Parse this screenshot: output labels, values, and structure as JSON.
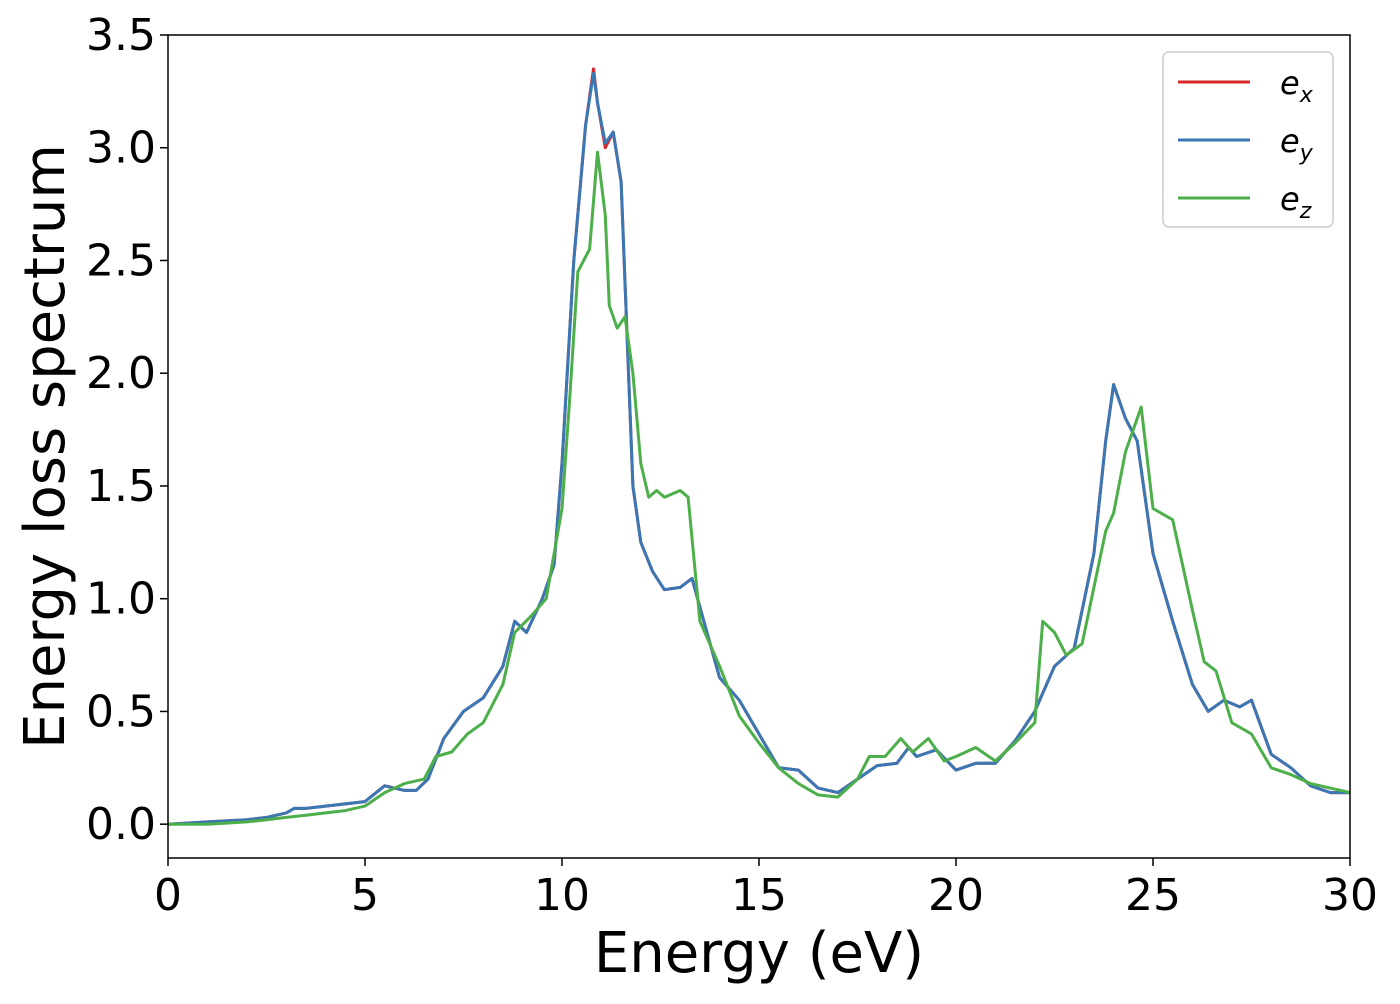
{
  "chart_data": {
    "type": "line",
    "title": "",
    "xlabel": "Energy (eV)",
    "ylabel": "Energy loss spectrum",
    "xlim": [
      0,
      30
    ],
    "ylim": [
      -0.15,
      3.5
    ],
    "xticks": [
      0,
      5,
      10,
      15,
      20,
      25,
      30
    ],
    "xtick_labels": [
      "0",
      "5",
      "10",
      "15",
      "20",
      "25",
      "30"
    ],
    "yticks": [
      0.0,
      0.5,
      1.0,
      1.5,
      2.0,
      2.5,
      3.0,
      3.5
    ],
    "ytick_labels": [
      "0.0",
      "0.5",
      "1.0",
      "1.5",
      "2.0",
      "2.5",
      "3.0",
      "3.5"
    ],
    "grid": false,
    "legend_position": "top-right",
    "series": [
      {
        "name": "e",
        "subscript": "x",
        "color": "#d62728",
        "x": [
          0,
          1,
          2,
          2.5,
          3,
          3.2,
          3.5,
          4,
          4.5,
          5,
          5.5,
          6,
          6.3,
          6.6,
          7,
          7.5,
          8,
          8.5,
          8.8,
          9.1,
          9.5,
          9.8,
          10,
          10.3,
          10.6,
          10.8,
          10.9,
          11.1,
          11.3,
          11.5,
          11.8,
          12,
          12.3,
          12.6,
          13,
          13.3,
          13.6,
          14,
          14.5,
          15,
          15.5,
          16,
          16.5,
          17,
          17.5,
          18,
          18.5,
          18.8,
          19,
          19.5,
          20,
          20.5,
          21,
          21.5,
          22,
          22.5,
          23,
          23.5,
          23.8,
          24,
          24.3,
          24.6,
          25,
          25.5,
          26,
          26.4,
          26.8,
          27.2,
          27.5,
          28,
          28.5,
          29,
          29.5,
          30
        ],
        "values": [
          0.0,
          0.01,
          0.02,
          0.03,
          0.05,
          0.07,
          0.07,
          0.08,
          0.09,
          0.1,
          0.17,
          0.15,
          0.15,
          0.2,
          0.38,
          0.5,
          0.56,
          0.7,
          0.9,
          0.85,
          1.0,
          1.15,
          1.6,
          2.5,
          3.1,
          3.35,
          3.2,
          3.0,
          3.07,
          2.85,
          1.5,
          1.25,
          1.12,
          1.04,
          1.05,
          1.09,
          0.9,
          0.65,
          0.55,
          0.4,
          0.25,
          0.24,
          0.16,
          0.14,
          0.2,
          0.26,
          0.27,
          0.34,
          0.3,
          0.33,
          0.24,
          0.27,
          0.27,
          0.37,
          0.5,
          0.7,
          0.78,
          1.2,
          1.7,
          1.95,
          1.8,
          1.7,
          1.2,
          0.9,
          0.62,
          0.5,
          0.55,
          0.52,
          0.55,
          0.31,
          0.25,
          0.17,
          0.14,
          0.14
        ]
      },
      {
        "name": "e",
        "subscript": "y",
        "color": "#3a78b5",
        "x": [
          0,
          1,
          2,
          2.5,
          3,
          3.2,
          3.5,
          4,
          4.5,
          5,
          5.5,
          6,
          6.3,
          6.6,
          7,
          7.5,
          8,
          8.5,
          8.8,
          9.1,
          9.5,
          9.8,
          10,
          10.3,
          10.6,
          10.8,
          10.9,
          11.1,
          11.3,
          11.5,
          11.8,
          12,
          12.3,
          12.6,
          13,
          13.3,
          13.6,
          14,
          14.5,
          15,
          15.5,
          16,
          16.5,
          17,
          17.5,
          18,
          18.5,
          18.8,
          19,
          19.5,
          20,
          20.5,
          21,
          21.5,
          22,
          22.5,
          23,
          23.5,
          23.8,
          24,
          24.3,
          24.6,
          25,
          25.5,
          26,
          26.4,
          26.8,
          27.2,
          27.5,
          28,
          28.5,
          29,
          29.5,
          30
        ],
        "values": [
          0.0,
          0.01,
          0.02,
          0.03,
          0.05,
          0.07,
          0.07,
          0.08,
          0.09,
          0.1,
          0.17,
          0.15,
          0.15,
          0.2,
          0.38,
          0.5,
          0.56,
          0.7,
          0.9,
          0.85,
          1.0,
          1.15,
          1.6,
          2.5,
          3.1,
          3.33,
          3.2,
          3.02,
          3.07,
          2.85,
          1.5,
          1.25,
          1.12,
          1.04,
          1.05,
          1.09,
          0.9,
          0.65,
          0.55,
          0.4,
          0.25,
          0.24,
          0.16,
          0.14,
          0.2,
          0.26,
          0.27,
          0.34,
          0.3,
          0.33,
          0.24,
          0.27,
          0.27,
          0.37,
          0.5,
          0.7,
          0.78,
          1.2,
          1.7,
          1.95,
          1.8,
          1.7,
          1.2,
          0.9,
          0.62,
          0.5,
          0.55,
          0.52,
          0.55,
          0.31,
          0.25,
          0.17,
          0.14,
          0.14
        ]
      },
      {
        "name": "e",
        "subscript": "z",
        "color": "#4daf4a",
        "x": [
          0,
          1,
          2,
          2.5,
          3,
          3.5,
          4,
          4.5,
          5,
          5.5,
          6,
          6.5,
          6.8,
          7.2,
          7.6,
          8,
          8.5,
          8.8,
          9.2,
          9.6,
          10,
          10.2,
          10.4,
          10.7,
          10.9,
          11.1,
          11.2,
          11.4,
          11.6,
          11.8,
          12,
          12.2,
          12.4,
          12.6,
          13,
          13.2,
          13.5,
          14,
          14.5,
          15,
          15.5,
          16,
          16.5,
          17,
          17.5,
          17.8,
          18.2,
          18.6,
          18.9,
          19.3,
          19.7,
          20,
          20.5,
          21,
          21.5,
          22,
          22.2,
          22.5,
          22.8,
          23.2,
          23.5,
          23.8,
          24,
          24.3,
          24.5,
          24.7,
          25,
          25.5,
          26,
          26.3,
          26.6,
          27,
          27.5,
          28,
          28.5,
          29,
          29.5,
          30
        ],
        "values": [
          0.0,
          0.0,
          0.01,
          0.02,
          0.03,
          0.04,
          0.05,
          0.06,
          0.08,
          0.14,
          0.18,
          0.2,
          0.3,
          0.32,
          0.4,
          0.45,
          0.62,
          0.85,
          0.92,
          1.0,
          1.4,
          1.9,
          2.45,
          2.55,
          2.98,
          2.7,
          2.3,
          2.2,
          2.25,
          2.0,
          1.6,
          1.45,
          1.48,
          1.45,
          1.48,
          1.45,
          0.9,
          0.7,
          0.48,
          0.36,
          0.25,
          0.18,
          0.13,
          0.12,
          0.2,
          0.3,
          0.3,
          0.38,
          0.32,
          0.38,
          0.28,
          0.3,
          0.34,
          0.28,
          0.36,
          0.45,
          0.9,
          0.85,
          0.75,
          0.8,
          1.05,
          1.3,
          1.38,
          1.65,
          1.75,
          1.85,
          1.4,
          1.35,
          0.95,
          0.72,
          0.68,
          0.45,
          0.4,
          0.25,
          0.22,
          0.18,
          0.16,
          0.14
        ]
      }
    ]
  }
}
